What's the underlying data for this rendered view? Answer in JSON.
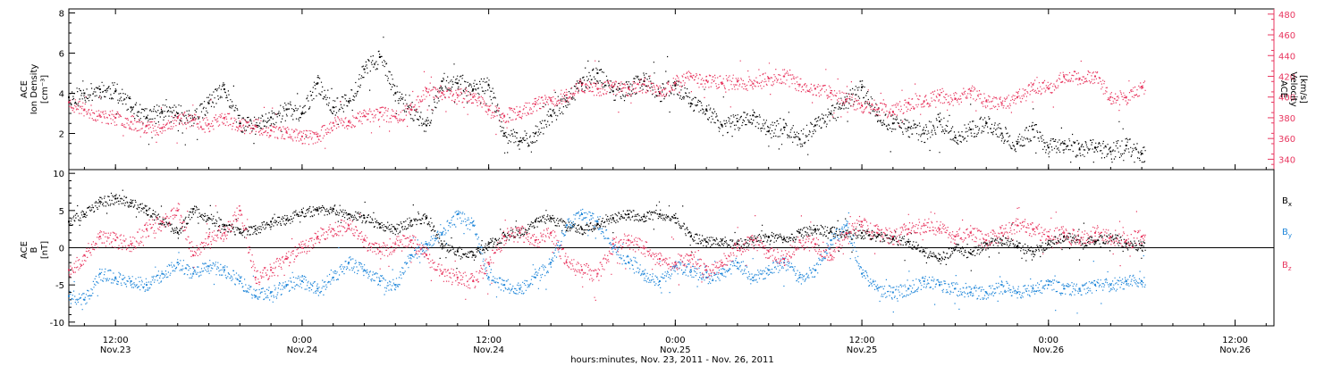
{
  "colors": {
    "black": "#000000",
    "pink": "#e8365f",
    "blue": "#1f86d9",
    "axis": "#000000"
  },
  "xaxis": {
    "ticks": [
      {
        "t": 10.5,
        "top": "12:00",
        "bot": "Nov.23"
      },
      {
        "t": 22.5,
        "top": "0:00",
        "bot": "Nov.24"
      },
      {
        "t": 34.5,
        "top": "12:00",
        "bot": "Nov.24"
      },
      {
        "t": 46.5,
        "top": "0:00",
        "bot": "Nov.25"
      },
      {
        "t": 58.5,
        "top": "12:00",
        "bot": "Nov.25"
      },
      {
        "t": 70.5,
        "top": "0:00",
        "bot": "Nov.26"
      },
      {
        "t": 82.5,
        "top": "12:00",
        "bot": "Nov.26"
      }
    ],
    "label": "hours:minutes, Nov. 23, 2011 - Nov. 26, 2011",
    "range_hours": [
      7.5,
      85.0
    ],
    "data_end_hour": 76.7
  },
  "chart_data": [
    {
      "type": "scatter",
      "panel": "top",
      "ylabel_left": [
        "ACE",
        "Ion Density",
        "[cm⁻³]"
      ],
      "ylabel_right": [
        "ACE",
        "Velocity",
        "[km/s]"
      ],
      "ylim_left": [
        0.2,
        8.2
      ],
      "ylim_right": [
        330,
        485
      ],
      "left_ticks": [
        2,
        4,
        6,
        8
      ],
      "right_ticks": [
        340,
        360,
        380,
        400,
        420,
        440,
        460,
        480
      ],
      "series": [
        {
          "name": "Ion Density",
          "color": "black",
          "axis": "left",
          "x": [
            7.5,
            8.5,
            9.5,
            10.5,
            11.5,
            12.5,
            13.5,
            14.5,
            15.5,
            16.5,
            17.5,
            18.5,
            19.5,
            20.5,
            21.5,
            22.5,
            23.5,
            24.5,
            25.5,
            26.5,
            27.5,
            28.5,
            29.5,
            30.5,
            31.5,
            32.5,
            33.5,
            34.5,
            35.5,
            36.5,
            37.5,
            38.5,
            39.5,
            40.5,
            41.5,
            42.5,
            43.5,
            44.5,
            45.5,
            46.5,
            47.5,
            48.5,
            49.5,
            50.5,
            51.5,
            52.5,
            53.5,
            54.5,
            55.5,
            56.5,
            57.5,
            58.5,
            59.5,
            60.5,
            61.5,
            62.5,
            63.5,
            64.5,
            65.5,
            66.5,
            67.5,
            68.5,
            69.5,
            70.5,
            71.5,
            72.5,
            73.5,
            74.5,
            75.5,
            76.5
          ],
          "y": [
            3.8,
            4.0,
            4.2,
            4.1,
            3.3,
            2.8,
            3.1,
            3.0,
            2.7,
            3.5,
            4.2,
            2.5,
            2.4,
            2.8,
            3.2,
            3.0,
            4.5,
            3.3,
            3.6,
            5.2,
            5.8,
            4.0,
            3.2,
            2.4,
            4.6,
            4.5,
            4.2,
            4.4,
            2.0,
            1.6,
            2.0,
            2.9,
            3.6,
            4.5,
            5.0,
            4.1,
            4.3,
            4.6,
            4.0,
            4.4,
            3.5,
            3.2,
            2.4,
            2.6,
            2.9,
            2.1,
            2.3,
            1.7,
            2.4,
            3.0,
            3.6,
            4.3,
            2.9,
            2.5,
            2.3,
            2.0,
            2.6,
            1.8,
            2.2,
            2.5,
            2.0,
            1.5,
            2.2,
            1.3,
            1.5,
            1.2,
            1.3,
            1.1,
            1.4,
            1.0
          ]
        },
        {
          "name": "Velocity",
          "color": "pink",
          "axis": "right",
          "x": [
            7.5,
            8.5,
            9.5,
            10.5,
            11.5,
            12.5,
            13.5,
            14.5,
            15.5,
            16.5,
            17.5,
            18.5,
            19.5,
            20.5,
            21.5,
            22.5,
            23.5,
            24.5,
            25.5,
            26.5,
            27.5,
            28.5,
            29.5,
            30.5,
            31.5,
            32.5,
            33.5,
            34.5,
            35.5,
            36.5,
            37.5,
            38.5,
            39.5,
            40.5,
            41.5,
            42.5,
            43.5,
            44.5,
            45.5,
            46.5,
            47.5,
            48.5,
            49.5,
            50.5,
            51.5,
            52.5,
            53.5,
            54.5,
            55.5,
            56.5,
            57.5,
            58.5,
            59.5,
            60.5,
            61.5,
            62.5,
            63.5,
            64.5,
            65.5,
            66.5,
            67.5,
            68.5,
            69.5,
            70.5,
            71.5,
            72.5,
            73.5,
            74.5,
            75.5,
            76.5
          ],
          "y": [
            395,
            388,
            382,
            380,
            376,
            372,
            370,
            380,
            378,
            374,
            380,
            372,
            372,
            368,
            366,
            362,
            362,
            375,
            376,
            382,
            385,
            381,
            388,
            408,
            404,
            402,
            400,
            388,
            382,
            386,
            393,
            397,
            402,
            412,
            408,
            410,
            408,
            412,
            405,
            414,
            420,
            416,
            414,
            415,
            413,
            418,
            420,
            412,
            408,
            404,
            398,
            392,
            388,
            386,
            394,
            396,
            402,
            398,
            406,
            396,
            394,
            400,
            412,
            408,
            420,
            418,
            420,
            400,
            400,
            410
          ]
        }
      ]
    },
    {
      "type": "scatter",
      "panel": "bottom",
      "ylabel_left": [
        "ACE",
        "B",
        "[nT]"
      ],
      "ylim": [
        -10.5,
        10.5
      ],
      "ticks": [
        -10,
        -5,
        0,
        5,
        10
      ],
      "legend_position": "right",
      "series": [
        {
          "name": "Bx",
          "legend": [
            "B",
            "x"
          ],
          "color": "black",
          "x": [
            7.5,
            8.5,
            9.5,
            10.5,
            11.5,
            12.5,
            13.5,
            14.5,
            15.5,
            16.5,
            17.5,
            18.5,
            19.5,
            20.5,
            21.5,
            22.5,
            23.5,
            24.5,
            25.5,
            26.5,
            27.5,
            28.5,
            29.5,
            30.5,
            31.5,
            32.5,
            33.5,
            34.5,
            35.5,
            36.5,
            37.5,
            38.5,
            39.5,
            40.5,
            41.5,
            42.5,
            43.5,
            44.5,
            45.5,
            46.5,
            47.5,
            48.5,
            49.5,
            50.5,
            51.5,
            52.5,
            53.5,
            54.5,
            55.5,
            56.5,
            57.5,
            58.5,
            59.5,
            60.5,
            61.5,
            62.5,
            63.5,
            64.5,
            65.5,
            66.5,
            67.5,
            68.5,
            69.5,
            70.5,
            71.5,
            72.5,
            73.5,
            74.5,
            75.5,
            76.5
          ],
          "y": [
            3.5,
            4.5,
            6.2,
            6.6,
            6.0,
            5.0,
            3.5,
            2.0,
            5.2,
            4.0,
            3.0,
            2.0,
            2.5,
            3.5,
            3.8,
            4.8,
            5.0,
            5.2,
            4.5,
            4.0,
            3.2,
            2.5,
            3.6,
            4.0,
            0.5,
            -0.5,
            -1.0,
            0.5,
            1.5,
            2.0,
            3.5,
            4.0,
            3.0,
            2.5,
            3.2,
            4.0,
            4.5,
            4.2,
            4.5,
            4.0,
            1.5,
            0.8,
            1.0,
            0.5,
            1.0,
            1.5,
            1.2,
            2.0,
            2.5,
            2.2,
            1.8,
            2.0,
            1.5,
            1.2,
            0.8,
            -0.5,
            -1.5,
            0.0,
            -0.8,
            0.5,
            1.0,
            0.2,
            -0.5,
            0.5,
            1.5,
            1.0,
            0.8,
            1.5,
            0.5,
            0.3
          ]
        },
        {
          "name": "By",
          "legend": [
            "B",
            "y"
          ],
          "color": "blue",
          "x": [
            7.5,
            8.5,
            9.5,
            10.5,
            11.5,
            12.5,
            13.5,
            14.5,
            15.5,
            16.5,
            17.5,
            18.5,
            19.5,
            20.5,
            21.5,
            22.5,
            23.5,
            24.5,
            25.5,
            26.5,
            27.5,
            28.5,
            29.5,
            30.5,
            31.5,
            32.5,
            33.5,
            34.5,
            35.5,
            36.5,
            37.5,
            38.5,
            39.5,
            40.5,
            41.5,
            42.5,
            43.5,
            44.5,
            45.5,
            46.5,
            47.5,
            48.5,
            49.5,
            50.5,
            51.5,
            52.5,
            53.5,
            54.5,
            55.5,
            56.5,
            57.5,
            58.5,
            59.5,
            60.5,
            61.5,
            62.5,
            63.5,
            64.5,
            65.5,
            66.5,
            67.5,
            68.5,
            69.5,
            70.5,
            71.5,
            72.5,
            73.5,
            74.5,
            75.5,
            76.5
          ],
          "y": [
            -6.5,
            -7.0,
            -3.5,
            -4.0,
            -4.5,
            -5.0,
            -3.5,
            -2.0,
            -3.5,
            -2.5,
            -3.0,
            -4.5,
            -6.5,
            -6.0,
            -5.0,
            -4.5,
            -5.5,
            -4.0,
            -2.0,
            -3.0,
            -4.5,
            -5.0,
            -1.0,
            0.5,
            2.0,
            4.5,
            3.0,
            -4.0,
            -5.0,
            -5.5,
            -4.0,
            -2.0,
            3.0,
            4.5,
            3.5,
            0.0,
            -2.0,
            -3.5,
            -4.5,
            -2.5,
            -3.0,
            -4.0,
            -3.5,
            -2.0,
            -4.0,
            -3.0,
            -2.0,
            -4.0,
            -3.0,
            1.0,
            3.0,
            -3.5,
            -5.5,
            -6.0,
            -5.5,
            -4.5,
            -5.0,
            -5.5,
            -6.0,
            -6.0,
            -5.0,
            -6.0,
            -5.5,
            -5.0,
            -5.5,
            -5.5,
            -5.0,
            -5.0,
            -4.5,
            -4.5
          ]
        },
        {
          "name": "Bz",
          "legend": [
            "B",
            "z"
          ],
          "color": "pink",
          "x": [
            7.5,
            8.5,
            9.5,
            10.5,
            11.5,
            12.5,
            13.5,
            14.5,
            15.5,
            16.5,
            17.5,
            18.5,
            19.5,
            20.5,
            21.5,
            22.5,
            23.5,
            24.5,
            25.5,
            26.5,
            27.5,
            28.5,
            29.5,
            30.5,
            31.5,
            32.5,
            33.5,
            34.5,
            35.5,
            36.5,
            37.5,
            38.5,
            39.5,
            40.5,
            41.5,
            42.5,
            43.5,
            44.5,
            45.5,
            46.5,
            47.5,
            48.5,
            49.5,
            50.5,
            51.5,
            52.5,
            53.5,
            54.5,
            55.5,
            56.5,
            57.5,
            58.5,
            59.5,
            60.5,
            61.5,
            62.5,
            63.5,
            64.5,
            65.5,
            66.5,
            67.5,
            68.5,
            69.5,
            70.5,
            71.5,
            72.5,
            73.5,
            74.5,
            75.5,
            76.5
          ],
          "y": [
            -3.0,
            -1.0,
            1.5,
            1.0,
            0.5,
            2.5,
            3.5,
            5.0,
            -1.0,
            1.5,
            2.0,
            5.0,
            -4.0,
            -3.0,
            -1.5,
            0.0,
            1.5,
            2.5,
            3.0,
            1.0,
            -0.5,
            0.5,
            1.0,
            -1.0,
            -3.5,
            -4.0,
            -4.5,
            -2.0,
            1.5,
            2.0,
            1.0,
            2.0,
            -2.0,
            -3.0,
            -3.5,
            0.5,
            1.0,
            0.0,
            -1.5,
            -2.0,
            -1.0,
            -3.0,
            -2.0,
            0.0,
            1.0,
            -0.5,
            -1.5,
            1.0,
            0.5,
            -1.0,
            2.0,
            3.5,
            2.0,
            1.5,
            2.5,
            3.0,
            2.5,
            1.5,
            2.0,
            1.0,
            2.0,
            3.0,
            2.5,
            1.5,
            2.0,
            1.0,
            2.0,
            1.5,
            1.0,
            1.5
          ]
        }
      ]
    }
  ]
}
